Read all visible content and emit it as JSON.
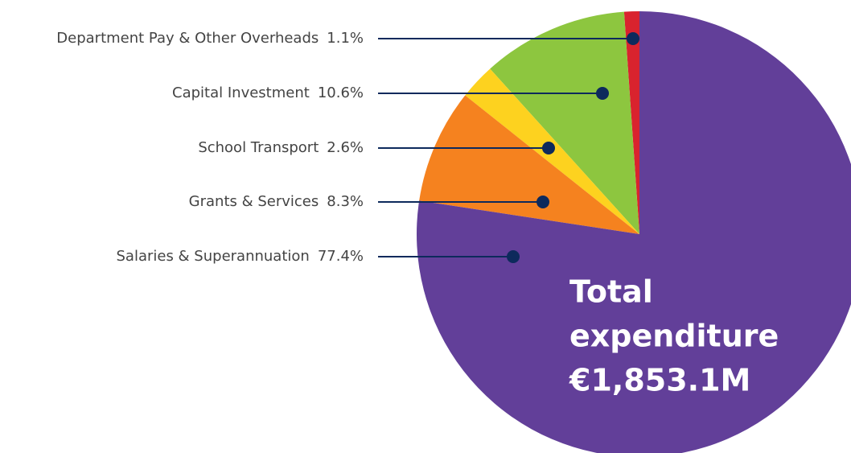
{
  "chart_data": {
    "type": "pie",
    "categories": [
      "Department Pay & Other Overheads",
      "Capital Investment",
      "School Transport",
      "Grants & Services",
      "Salaries & Superannuation"
    ],
    "values": [
      1.1,
      10.6,
      2.6,
      8.3,
      77.4
    ],
    "value_labels": [
      "1.1%",
      "10.6%",
      "2.6%",
      "8.3%",
      "77.4%"
    ],
    "colors": [
      "#d9232e",
      "#8dc63f",
      "#fdd21f",
      "#f5821f",
      "#623f99"
    ],
    "annotation_lines": [
      "Total",
      "expenditure",
      "€1,853.1M"
    ]
  }
}
